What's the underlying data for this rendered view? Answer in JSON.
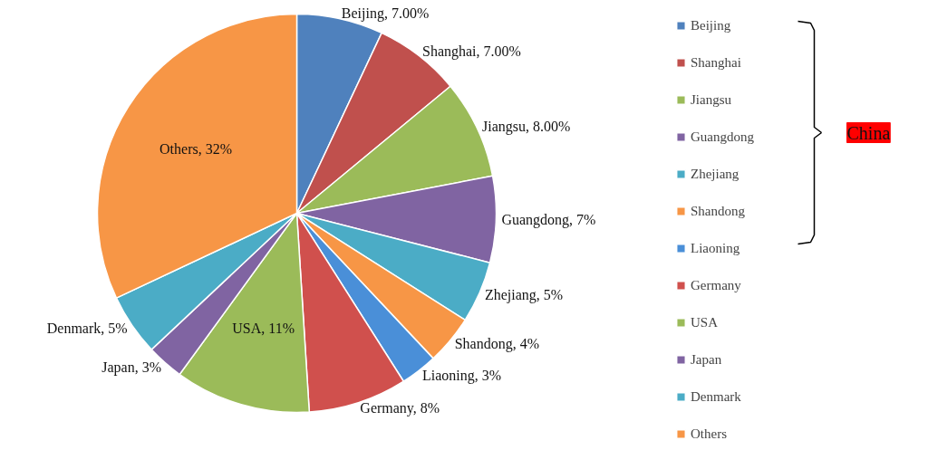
{
  "chart_data": {
    "type": "pie",
    "categories": [
      "Beijing",
      "Shanghai",
      "Jiangsu",
      "Guangdong",
      "Zhejiang",
      "Shandong",
      "Liaoning",
      "Germany",
      "USA",
      "Japan",
      "Denmark",
      "Others"
    ],
    "values": [
      7,
      7,
      8,
      7,
      5,
      4,
      3,
      8,
      11,
      3,
      5,
      32
    ],
    "value_labels": [
      "Beijing, 7.00%",
      "Shanghai, 7.00%",
      "Jiangsu, 8.00%",
      "Guangdong, 7%",
      "Zhejiang, 5%",
      "Shandong, 4%",
      "Liaoning, 3%",
      "Germany, 8%",
      "USA, 11%",
      "Japan, 3%",
      "Denmark, 5%",
      "Others, 32%"
    ],
    "colors": [
      "#4f81bd",
      "#c0504d",
      "#9bbb59",
      "#8064a2",
      "#4bacc6",
      "#f79646",
      "#4a8fd8",
      "#d0504d",
      "#9bbb59",
      "#8064a2",
      "#4bacc6",
      "#f79646"
    ],
    "legend": "right",
    "annotations": [
      "China"
    ]
  }
}
